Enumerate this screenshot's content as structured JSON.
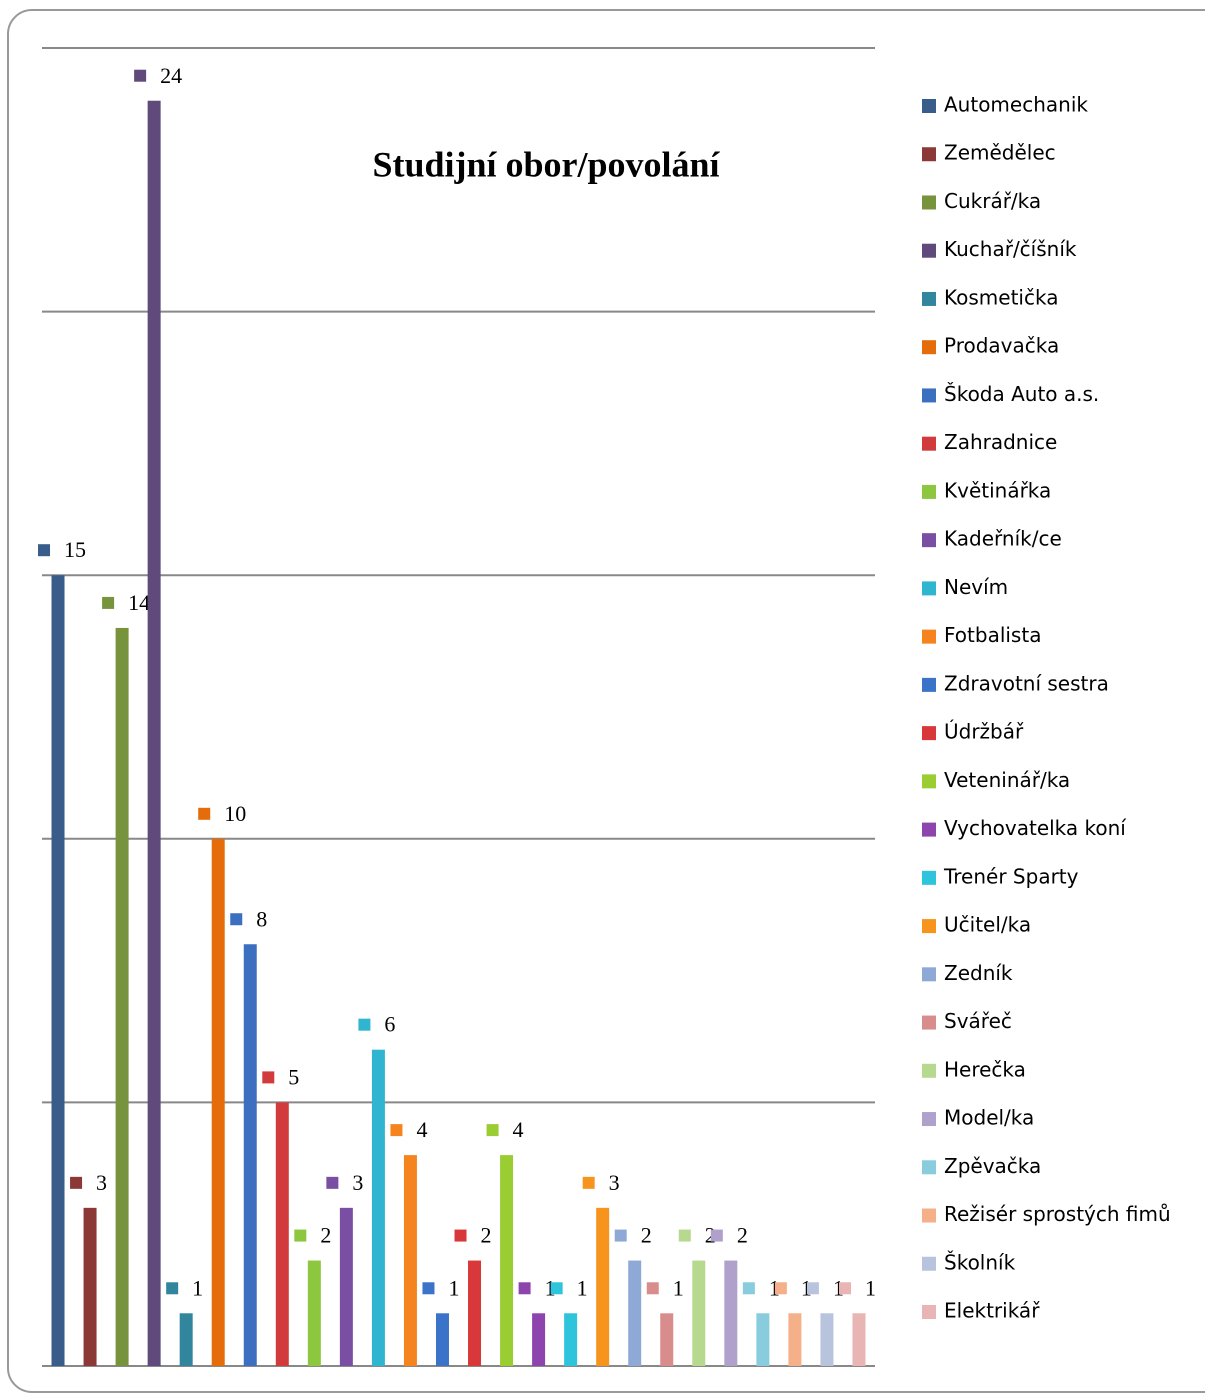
{
  "chart_data": {
    "type": "bar",
    "title": "Studijní obor/povolání",
    "categories": [
      "Automechanik",
      "Zemědělec",
      "Cukrář/ka",
      "Kuchař/číšník",
      "Kosmetička",
      "Prodavačka",
      "Škoda Auto a.s.",
      "Zahradnice",
      "Květinářka",
      "Kadeřník/ce",
      "Nevím",
      "Fotbalista",
      "Zdravotní sestra",
      "Údržbář",
      "Veteninář/ka",
      "Vychovatelka koní",
      "Trenér Sparty",
      "Učitel/ka",
      "Zedník",
      "Svářeč",
      "Herečka",
      "Model/ka",
      "Zpěvačka",
      "Režisér sprostých fimů",
      "Školník",
      "Elektrikář"
    ],
    "values": [
      15,
      3,
      14,
      24,
      1,
      10,
      8,
      5,
      2,
      3,
      6,
      4,
      1,
      2,
      4,
      1,
      1,
      3,
      2,
      1,
      2,
      2,
      1,
      1,
      1,
      1
    ],
    "colors": [
      "#385d8a",
      "#8c3836",
      "#77933c",
      "#604a7b",
      "#31859c",
      "#e46c0a",
      "#3d6fc0",
      "#d13b3b",
      "#8dc63f",
      "#7a4fa3",
      "#2fb5cf",
      "#f5841f",
      "#3b73c8",
      "#d9383a",
      "#9acd32",
      "#8e44ad",
      "#2ec4dc",
      "#f7941d",
      "#8fa9d6",
      "#d98c8c",
      "#b7d88f",
      "#b0a0cc",
      "#88ccdd",
      "#f5b08a",
      "#b8c4de",
      "#e8b4b4"
    ],
    "ylim": [
      0,
      25
    ],
    "yticks": [
      0,
      5,
      10,
      15,
      20,
      25
    ],
    "grid": true,
    "legend": "right"
  }
}
